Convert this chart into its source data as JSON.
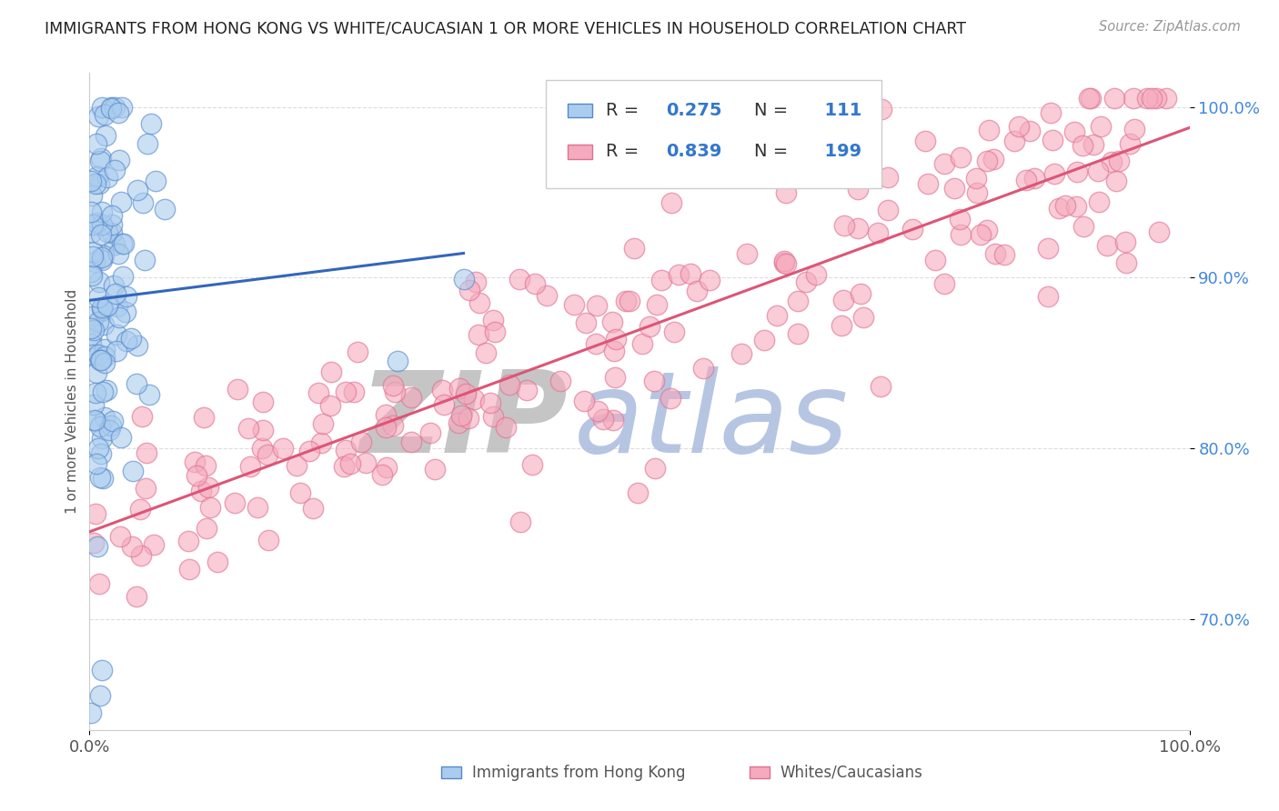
{
  "title": "IMMIGRANTS FROM HONG KONG VS WHITE/CAUCASIAN 1 OR MORE VEHICLES IN HOUSEHOLD CORRELATION CHART",
  "source": "Source: ZipAtlas.com",
  "ylabel": "1 or more Vehicles in Household",
  "xlim": [
    0.0,
    1.0
  ],
  "ylim": [
    0.635,
    1.02
  ],
  "yticks": [
    0.7,
    0.8,
    0.9,
    1.0
  ],
  "ytick_labels": [
    "70.0%",
    "80.0%",
    "90.0%",
    "100.0%"
  ],
  "legend_label1": "Immigrants from Hong Kong",
  "legend_label2": "Whites/Caucasians",
  "R1": 0.275,
  "N1": 111,
  "R2": 0.839,
  "N2": 199,
  "blue_fill": "#AACCEE",
  "blue_edge": "#5588CC",
  "pink_fill": "#F5AABD",
  "pink_edge": "#E07090",
  "blue_line_color": "#3366BB",
  "pink_line_color": "#DD5577",
  "title_color": "#222222",
  "source_color": "#999999",
  "ytick_color": "#4488DD",
  "xtick_color": "#555555",
  "ylabel_color": "#555555",
  "grid_color": "#DDDDDD",
  "legend_border_color": "#CCCCCC",
  "legend_text_color": "#333333",
  "legend_value_color": "#3377CC",
  "watermark_zip_color": "#BBBBBB",
  "watermark_atlas_color": "#AABBDD",
  "background": "#FFFFFF",
  "seed": 7
}
